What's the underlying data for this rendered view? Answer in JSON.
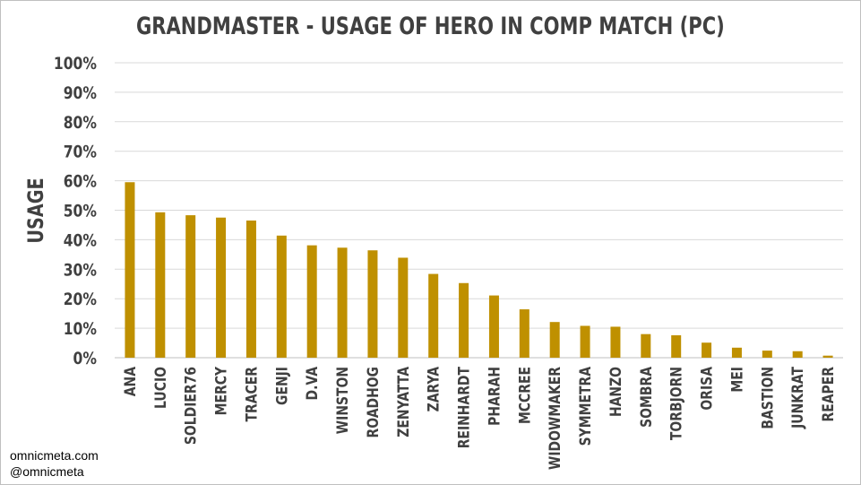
{
  "chart_data": {
    "type": "bar",
    "title": "GRANDMASTER - USAGE OF HERO IN COMP MATCH (PC)",
    "ylabel": "USAGE",
    "xlabel": "",
    "ylim": [
      0,
      100
    ],
    "y_ticks": [
      "0%",
      "10%",
      "20%",
      "30%",
      "40%",
      "50%",
      "60%",
      "70%",
      "80%",
      "90%",
      "100%"
    ],
    "grid": true,
    "categories": [
      "ANA",
      "LUCIO",
      "SOLDIER76",
      "MERCY",
      "TRACER",
      "GENJI",
      "D.VA",
      "WINSTON",
      "ROADHOG",
      "ZENYATTA",
      "ZARYA",
      "REINHARDT",
      "PHARAH",
      "MCCREE",
      "WIDOWMAKER",
      "SYMMETRA",
      "HANZO",
      "SOMBRA",
      "TORBJORN",
      "ORISA",
      "MEI",
      "BASTION",
      "JUNKRAT",
      "REAPER"
    ],
    "values": [
      59.5,
      49.3,
      48.3,
      47.5,
      46.5,
      41.4,
      38.1,
      37.3,
      36.4,
      33.9,
      28.4,
      25.3,
      21.1,
      16.4,
      12.1,
      10.8,
      10.5,
      8.0,
      7.6,
      5.1,
      3.4,
      2.4,
      2.2,
      0.7
    ],
    "bar_color": "#bf9000"
  },
  "credits": {
    "line1": "omnicmeta.com",
    "line2": "@omnicmeta"
  }
}
